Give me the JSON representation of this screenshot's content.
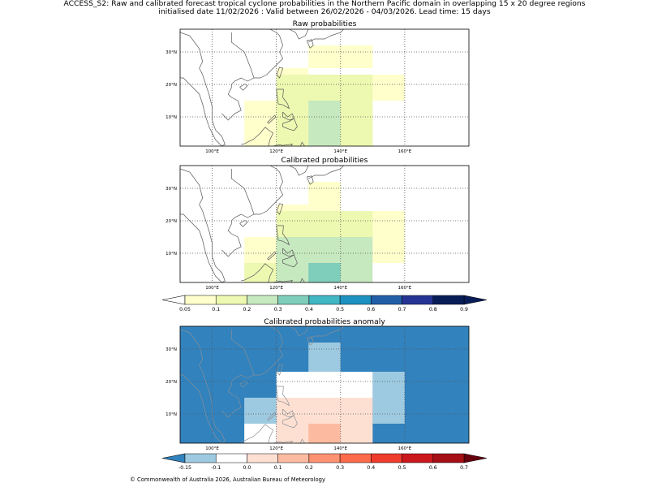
{
  "header": {
    "title_line1": "ACCESS_S2: Raw and calibrated forecast tropical cyclone probabilities in the Northern Pacific domain in overlapping 15 x 20 degree regions",
    "title_line2": "initialised date 11/02/2026 :  Valid between 26/02/2026 - 04/03/2026. Lead time: 15 days"
  },
  "footer": "© Commonwealth of Australia 2026, Australian Bureau of Meteorology",
  "chart_data": [
    {
      "type": "heatmap",
      "title": "Raw probabilities",
      "x_ticks": [
        100,
        120,
        140,
        160
      ],
      "x_tick_labels": [
        "100°E",
        "120°E",
        "140°E",
        "160°E"
      ],
      "y_ticks": [
        10,
        20,
        30
      ],
      "y_tick_labels": [
        "10°N",
        "20°N",
        "30°N"
      ],
      "xlim": [
        90,
        180
      ],
      "ylim": [
        1,
        37
      ],
      "background": "#ffffff",
      "cells": [
        {
          "lon": [
            130,
            150
          ],
          "lat": [
            25,
            32
          ],
          "color": "#ffffcc"
        },
        {
          "lon": [
            120,
            130
          ],
          "lat": [
            23,
            25
          ],
          "color": "#ffffcc"
        },
        {
          "lon": [
            150,
            160
          ],
          "lat": [
            15,
            23
          ],
          "color": "#ffffcc"
        },
        {
          "lon": [
            110,
            120
          ],
          "lat": [
            1,
            15
          ],
          "color": "#ffffcc"
        },
        {
          "lon": [
            120,
            150
          ],
          "lat": [
            1,
            23
          ],
          "color": "#edf8b1"
        },
        {
          "lon": [
            130,
            140
          ],
          "lat": [
            1,
            15
          ],
          "color": "#c7e9c0"
        }
      ]
    },
    {
      "type": "heatmap",
      "title": "Calibrated probabilities",
      "x_ticks": [
        100,
        120,
        140,
        160
      ],
      "x_tick_labels": [
        "100°E",
        "120°E",
        "140°E",
        "160°E"
      ],
      "y_ticks": [
        10,
        20,
        30
      ],
      "y_tick_labels": [
        "10°N",
        "20°N",
        "30°N"
      ],
      "xlim": [
        90,
        180
      ],
      "ylim": [
        1,
        37
      ],
      "background": "#ffffff",
      "cells": [
        {
          "lon": [
            130,
            140
          ],
          "lat": [
            23,
            32
          ],
          "color": "#ffffcc"
        },
        {
          "lon": [
            120,
            130
          ],
          "lat": [
            23,
            25
          ],
          "color": "#ffffcc"
        },
        {
          "lon": [
            150,
            160
          ],
          "lat": [
            7,
            23
          ],
          "color": "#ffffcc"
        },
        {
          "lon": [
            110,
            120
          ],
          "lat": [
            7,
            15
          ],
          "color": "#ffffcc"
        },
        {
          "lon": [
            120,
            150
          ],
          "lat": [
            15,
            23
          ],
          "color": "#edf8b1"
        },
        {
          "lon": [
            110,
            120
          ],
          "lat": [
            1,
            7
          ],
          "color": "#edf8b1"
        },
        {
          "lon": [
            120,
            150
          ],
          "lat": [
            1,
            15
          ],
          "color": "#c7e9c0"
        },
        {
          "lon": [
            130,
            140
          ],
          "lat": [
            1,
            7
          ],
          "color": "#7fcdbb"
        }
      ]
    },
    {
      "type": "heatmap",
      "title": "Calibrated probabilities anomaly",
      "x_ticks": [
        100,
        120,
        140,
        160
      ],
      "x_tick_labels": [
        "100°E",
        "120°E",
        "140°E",
        "160°E"
      ],
      "y_ticks": [
        10,
        20,
        30
      ],
      "y_tick_labels": [
        "10°N",
        "20°N",
        "30°N"
      ],
      "xlim": [
        90,
        180
      ],
      "ylim": [
        1,
        37
      ],
      "background": "#3182bd",
      "cells": [
        {
          "lon": [
            130,
            140
          ],
          "lat": [
            23,
            32
          ],
          "color": "#9ecae1"
        },
        {
          "lon": [
            150,
            160
          ],
          "lat": [
            7,
            23
          ],
          "color": "#9ecae1"
        },
        {
          "lon": [
            110,
            120
          ],
          "lat": [
            7,
            15
          ],
          "color": "#9ecae1"
        },
        {
          "lon": [
            120,
            150
          ],
          "lat": [
            15,
            23
          ],
          "color": "#ffffff"
        },
        {
          "lon": [
            110,
            120
          ],
          "lat": [
            1,
            7
          ],
          "color": "#ffffff"
        },
        {
          "lon": [
            120,
            150
          ],
          "lat": [
            1,
            15
          ],
          "color": "#fee0d2"
        },
        {
          "lon": [
            130,
            140
          ],
          "lat": [
            1,
            7
          ],
          "color": "#fcbba1"
        }
      ]
    }
  ],
  "colorbars": [
    {
      "name": "probability",
      "ticks": [
        "0.05",
        "0.1",
        "0.2",
        "0.3",
        "0.4",
        "0.5",
        "0.6",
        "0.7",
        "0.8",
        "0.9"
      ],
      "colors": [
        "#ffffcc",
        "#edf8b1",
        "#c7e9c0",
        "#7fcdbb",
        "#41b6c4",
        "#1d91c0",
        "#225ea8",
        "#253494",
        "#081d58"
      ],
      "under_color": "#ffffff",
      "over_color": "#081d58"
    },
    {
      "name": "anomaly",
      "ticks": [
        "-0.15",
        "-0.1",
        "0.0",
        "0.1",
        "0.2",
        "0.3",
        "0.4",
        "0.5",
        "0.6",
        "0.7"
      ],
      "colors": [
        "#9ecae1",
        "#ffffff",
        "#fee0d2",
        "#fcbba1",
        "#fc9272",
        "#fb6a4a",
        "#ef3b2c",
        "#cb181d",
        "#a50f15"
      ],
      "under_color": "#3182bd",
      "over_color": "#67000d"
    }
  ]
}
